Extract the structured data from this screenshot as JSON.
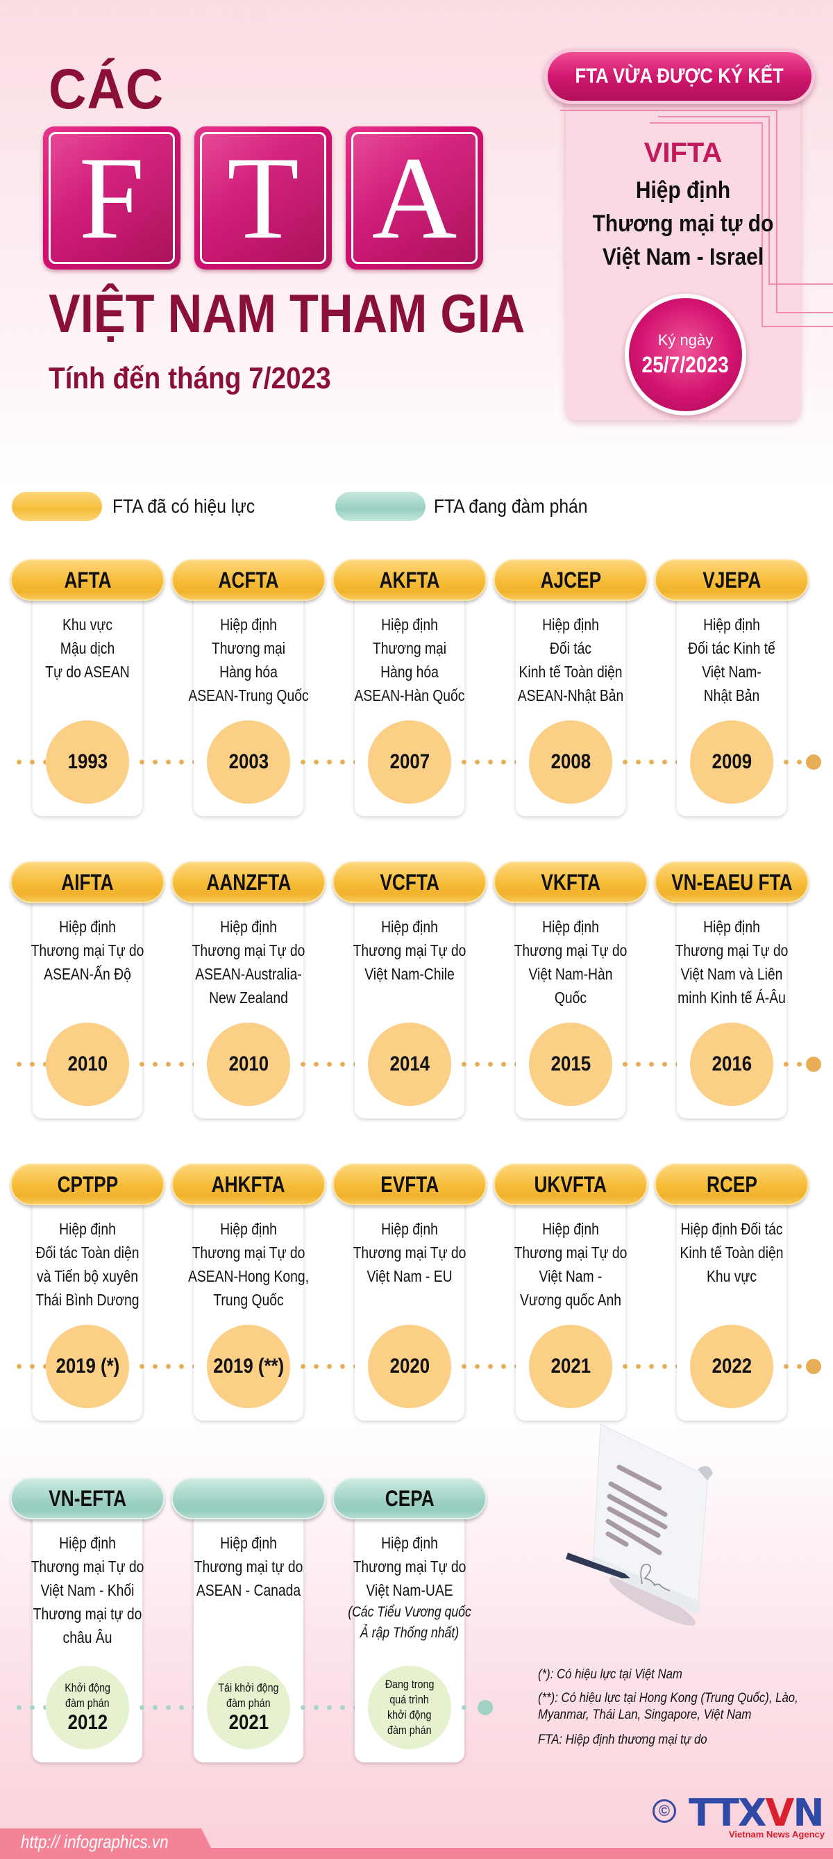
{
  "header": {
    "title_top": "CÁC",
    "title_letters": [
      "F",
      "T",
      "A"
    ],
    "title_main": "VIỆT NAM THAM GIA",
    "subtitle": "Tính đến tháng 7/2023"
  },
  "new_fta": {
    "badge": "FTA VỪA ĐƯỢC KÝ KẾT",
    "code": "VIFTA",
    "description": [
      "Hiệp định",
      "Thương mại tự do",
      "Việt Nam - Israel"
    ],
    "date_label": "Ký ngày",
    "date": "25/7/2023"
  },
  "legend": [
    {
      "label": "FTA đã có hiệu lực",
      "color": "#f6bd3a"
    },
    {
      "label": "FTA đang đàm phán",
      "color": "#98cfc2"
    }
  ],
  "rows": [
    {
      "status": "in_effect",
      "items": [
        {
          "code": "AFTA",
          "desc": [
            "Khu vực",
            "Mậu dịch",
            "Tự do ASEAN"
          ],
          "year": "1993"
        },
        {
          "code": "ACFTA",
          "desc": [
            "Hiệp định",
            "Thương mại",
            "Hàng hóa",
            "ASEAN-Trung Quốc"
          ],
          "year": "2003"
        },
        {
          "code": "AKFTA",
          "desc": [
            "Hiệp định",
            "Thương mại",
            "Hàng hóa",
            "ASEAN-Hàn Quốc"
          ],
          "year": "2007"
        },
        {
          "code": "AJCEP",
          "desc": [
            "Hiệp định",
            "Đối tác",
            "Kinh tế Toàn diện",
            "ASEAN-Nhật Bản"
          ],
          "year": "2008"
        },
        {
          "code": "VJEPA",
          "desc": [
            "Hiệp định",
            "Đối tác Kinh tế",
            "Việt Nam-",
            "Nhật Bản"
          ],
          "year": "2009"
        }
      ]
    },
    {
      "status": "in_effect",
      "items": [
        {
          "code": "AIFTA",
          "desc": [
            "Hiệp định",
            "Thương mại Tự do",
            "ASEAN-Ấn Độ"
          ],
          "year": "2010"
        },
        {
          "code": "AANZFTA",
          "desc": [
            "Hiệp định",
            "Thương mại Tự do",
            "ASEAN-Australia-",
            "New Zealand"
          ],
          "year": "2010"
        },
        {
          "code": "VCFTA",
          "desc": [
            "Hiệp định",
            "Thương mại Tự do",
            "Việt Nam-Chile"
          ],
          "year": "2014"
        },
        {
          "code": "VKFTA",
          "desc": [
            "Hiệp định",
            "Thương mại Tự do",
            "Việt Nam-Hàn",
            "Quốc"
          ],
          "year": "2015"
        },
        {
          "code": "VN-EAEU FTA",
          "desc": [
            "Hiệp định",
            "Thương mại Tự do",
            "Việt Nam và Liên",
            "minh Kinh tế Á-Âu"
          ],
          "year": "2016"
        }
      ]
    },
    {
      "status": "in_effect",
      "items": [
        {
          "code": "CPTPP",
          "desc": [
            "Hiệp định",
            "Đối tác Toàn diện",
            "và Tiến bộ xuyên",
            "Thái Bình Dương"
          ],
          "year": "2019 (*)"
        },
        {
          "code": "AHKFTA",
          "desc": [
            "Hiệp định",
            "Thương mại Tự do",
            "ASEAN-Hong Kong,",
            "Trung Quốc"
          ],
          "year": "2019 (**)"
        },
        {
          "code": "EVFTA",
          "desc": [
            "Hiệp định",
            "Thương mại Tự do",
            "Việt Nam - EU"
          ],
          "year": "2020"
        },
        {
          "code": "UKVFTA",
          "desc": [
            "Hiệp định",
            "Thương mại Tự do",
            "Việt Nam -",
            "Vương quốc Anh"
          ],
          "year": "2021"
        },
        {
          "code": "RCEP",
          "desc": [
            "Hiệp định Đối tác",
            "Kinh tế Toàn diện",
            "Khu vực"
          ],
          "year": "2022"
        }
      ]
    },
    {
      "status": "negotiating",
      "items": [
        {
          "code": "VN-EFTA",
          "desc": [
            "Hiệp định",
            "Thương mại Tự do",
            "Việt Nam - Khối",
            "Thương mại tự do",
            "châu Âu"
          ],
          "desc_note": [],
          "status_lines": [
            "Khởi động",
            "đàm phán"
          ],
          "year": "2012"
        },
        {
          "code": "",
          "desc": [
            "Hiệp định",
            "Thương mại tự do",
            "ASEAN - Canada"
          ],
          "desc_note": [],
          "status_lines": [
            "Tái khởi động",
            "đàm phán"
          ],
          "year": "2021"
        },
        {
          "code": "CEPA",
          "desc": [
            "Hiệp định",
            "Thương mại Tự do",
            "Việt Nam-UAE"
          ],
          "desc_note": [
            "(Các Tiểu Vương quốc",
            "Ả rập Thống nhất)"
          ],
          "status_lines": [
            "Đang trong",
            "quá trình",
            "khởi động",
            "đàm phán"
          ],
          "year": ""
        }
      ]
    }
  ],
  "notes": {
    "n1": "(*): Có hiệu lực tại Việt Nam",
    "n2a": "(**): Có hiệu lực tại Hong Kong (Trung Quốc), Lào,",
    "n2b": "Myanmar, Thái Lan, Singapore, Việt Nam",
    "n3": "FTA: Hiệp định thương mại tự do"
  },
  "footer": {
    "url": "http:// infographics.vn",
    "copyright_symbol": "©",
    "logo": "TTXVN",
    "logo_tagline": "Vietnam News Agency"
  },
  "colors": {
    "title": "#8a1038",
    "accent_pink": "#d30f74",
    "in_effect": "#f6bd3a",
    "negotiating": "#98cfc2",
    "year_circle": "#fccf86",
    "negotiation_circle": "#e5f1cf"
  },
  "icons": {
    "contract": "signed-document-with-pen-illustration"
  }
}
